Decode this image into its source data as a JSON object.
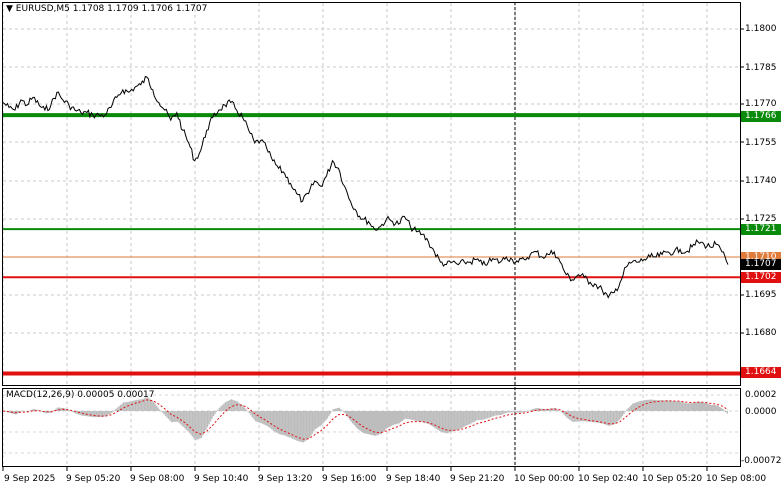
{
  "header": {
    "arrow": "▼",
    "symbol": "EURUSD,M5",
    "ohlc": "1.1708 1.1709 1.1706 1.1707"
  },
  "price_axis": [
    "1.1800",
    "1.1785",
    "1.1770",
    "1.1755",
    "1.1740",
    "1.1725",
    "1.1695",
    "1.1680"
  ],
  "levels": [
    {
      "price": 1.1766,
      "label": "1.1766",
      "color": "#0a8a0a"
    },
    {
      "price": 1.1721,
      "label": "1.1721",
      "color": "#0a8a0a"
    },
    {
      "price": 1.1702,
      "label": "1.1702",
      "color": "#e01010"
    },
    {
      "price": 1.1664,
      "label": "1.1664",
      "color": "#e01010"
    }
  ],
  "current_price": {
    "label": "1.1707",
    "color": "#000000"
  },
  "ask_price": {
    "label": "1.1710",
    "color": "#e07b39"
  },
  "macd": {
    "title": "MACD(12,26,9) 0.00005 0.00017",
    "axis": [
      "0.0002",
      "0.0000",
      "-0.00072"
    ]
  },
  "time_axis": [
    "9 Sep 2025",
    "9 Sep 05:20",
    "9 Sep 08:00",
    "9 Sep 10:40",
    "9 Sep 13:20",
    "9 Sep 16:00",
    "9 Sep 18:40",
    "9 Sep 21:20",
    "10 Sep 00:00",
    "10 Sep 02:40",
    "10 Sep 05:20",
    "10 Sep 08:00"
  ],
  "chart_data": {
    "type": "line",
    "symbol": "EURUSD",
    "timeframe": "M5",
    "y_range": [
      1.1664,
      1.1805
    ],
    "close": [
      1.1771,
      1.1769,
      1.1768,
      1.1772,
      1.177,
      1.1773,
      1.177,
      1.1768,
      1.177,
      1.1775,
      1.1772,
      1.177,
      1.1768,
      1.1767,
      1.1767,
      1.1766,
      1.1766,
      1.1766,
      1.1769,
      1.1773,
      1.1776,
      1.1775,
      1.1777,
      1.1778,
      1.1781,
      1.1776,
      1.1771,
      1.1768,
      1.1764,
      1.1767,
      1.176,
      1.1755,
      1.1748,
      1.1752,
      1.176,
      1.1765,
      1.1768,
      1.177,
      1.1771,
      1.1768,
      1.1765,
      1.176,
      1.1755,
      1.1756,
      1.1753,
      1.1748,
      1.1745,
      1.1743,
      1.1739,
      1.1735,
      1.1732,
      1.1735,
      1.174,
      1.1738,
      1.1742,
      1.1748,
      1.1745,
      1.1738,
      1.1732,
      1.1728,
      1.1725,
      1.1724,
      1.1721,
      1.1722,
      1.1725,
      1.1724,
      1.1723,
      1.1726,
      1.1722,
      1.172,
      1.1719,
      1.1716,
      1.1712,
      1.1708,
      1.1707,
      1.1708,
      1.1707,
      1.1708,
      1.1708,
      1.1709,
      1.1707,
      1.1708,
      1.1709,
      1.1708,
      1.171,
      1.1709,
      1.1708,
      1.1709,
      1.1711,
      1.1712,
      1.171,
      1.1711,
      1.1712,
      1.1708,
      1.1703,
      1.1701,
      1.1703,
      1.1702,
      1.17,
      1.1699,
      1.1697,
      1.1694,
      1.1696,
      1.17,
      1.1706,
      1.1708,
      1.1708,
      1.1709,
      1.171,
      1.171,
      1.1711,
      1.1712,
      1.1712,
      1.1713,
      1.1712,
      1.1714,
      1.1716,
      1.1715,
      1.1714,
      1.1715,
      1.1712,
      1.1707
    ]
  }
}
